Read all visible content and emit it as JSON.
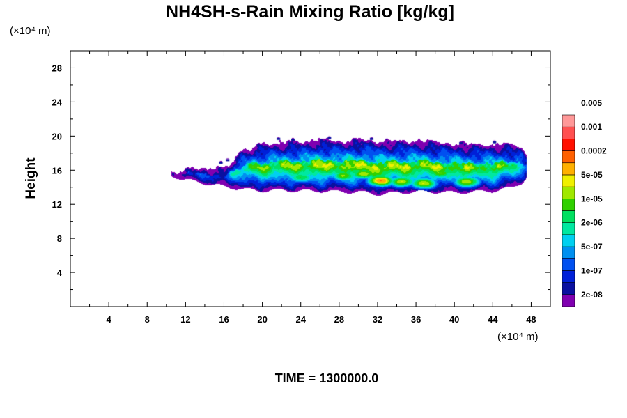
{
  "chart_data": {
    "type": "heatmap",
    "title": "NH4SH-s-Rain Mixing Ratio [kg/kg]",
    "ylabel": "Height",
    "x_unit_label": "(×10⁴ m)",
    "y_unit_label": "(×10⁴ m)",
    "xlim": [
      0,
      50
    ],
    "ylim": [
      0,
      30
    ],
    "x_ticks": [
      "4",
      "8",
      "12",
      "16",
      "20",
      "24",
      "28",
      "32",
      "36",
      "40",
      "44",
      "48"
    ],
    "y_ticks": [
      "4",
      "8",
      "12",
      "16",
      "20",
      "24",
      "28"
    ],
    "time_label": "TIME = 1300000.0",
    "colorbar": {
      "colors": [
        "#8000b0",
        "#0a10a0",
        "#0020d8",
        "#0050f0",
        "#0090f0",
        "#00d0f0",
        "#00e8a0",
        "#00e060",
        "#30d000",
        "#a0e800",
        "#f0f000",
        "#ffb000",
        "#ff6000",
        "#ff1000",
        "#ff5050",
        "#ff9898"
      ],
      "labels": [
        "2e-08",
        "1e-07",
        "5e-07",
        "2e-06",
        "1e-05",
        "5e-05",
        "0.0002",
        "0.001",
        "0.005"
      ]
    },
    "field": {
      "description_levels": "level index 1..15 maps to colorbar colors",
      "envelope": [
        {
          "x": 10.5,
          "bottom": 15.4,
          "top": 15.8
        },
        {
          "x": 12.0,
          "bottom": 14.9,
          "top": 16.1
        },
        {
          "x": 14.0,
          "bottom": 14.5,
          "top": 16.4
        },
        {
          "x": 16.0,
          "bottom": 14.1,
          "top": 16.2
        },
        {
          "x": 18.0,
          "bottom": 13.8,
          "top": 18.5
        },
        {
          "x": 20.0,
          "bottom": 13.6,
          "top": 19.1
        },
        {
          "x": 22.0,
          "bottom": 13.7,
          "top": 19.3
        },
        {
          "x": 24.0,
          "bottom": 13.6,
          "top": 19.4
        },
        {
          "x": 26.0,
          "bottom": 13.6,
          "top": 19.6
        },
        {
          "x": 28.0,
          "bottom": 13.5,
          "top": 19.5
        },
        {
          "x": 30.0,
          "bottom": 13.5,
          "top": 19.6
        },
        {
          "x": 32.0,
          "bottom": 13.2,
          "top": 19.5
        },
        {
          "x": 34.0,
          "bottom": 13.4,
          "top": 19.4
        },
        {
          "x": 36.0,
          "bottom": 13.5,
          "top": 19.5
        },
        {
          "x": 38.0,
          "bottom": 13.5,
          "top": 19.3
        },
        {
          "x": 40.0,
          "bottom": 13.4,
          "top": 19.2
        },
        {
          "x": 42.0,
          "bottom": 13.5,
          "top": 19.0
        },
        {
          "x": 44.0,
          "bottom": 13.6,
          "top": 19.1
        },
        {
          "x": 46.0,
          "bottom": 14.0,
          "top": 19.0
        },
        {
          "x": 47.0,
          "bottom": 14.6,
          "top": 18.6
        },
        {
          "x": 47.5,
          "bottom": 15.2,
          "top": 17.8
        }
      ],
      "hotspots": [
        {
          "x": 32.3,
          "y": 14.8,
          "level": 13
        },
        {
          "x": 30.5,
          "y": 15.6,
          "level": 11
        },
        {
          "x": 34.5,
          "y": 14.7,
          "level": 11
        },
        {
          "x": 36.8,
          "y": 14.5,
          "level": 11
        },
        {
          "x": 41.3,
          "y": 14.7,
          "level": 11
        },
        {
          "x": 26.5,
          "y": 16.1,
          "level": 10
        },
        {
          "x": 28.5,
          "y": 15.4,
          "level": 10
        },
        {
          "x": 24.0,
          "y": 15.2,
          "level": 9
        },
        {
          "x": 38.5,
          "y": 15.7,
          "level": 10
        },
        {
          "x": 33.5,
          "y": 16.7,
          "level": 9
        }
      ]
    }
  }
}
